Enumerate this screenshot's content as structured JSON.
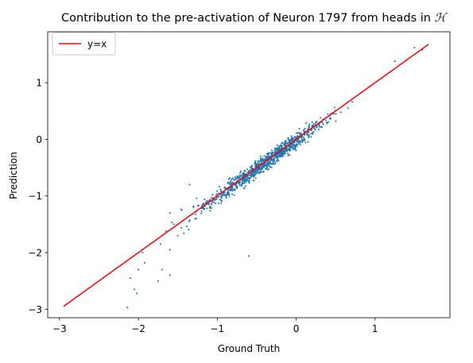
{
  "chart_data": {
    "type": "scatter",
    "title": "Contribution to the pre-activation of Neuron 1797 from heads in 𝓗",
    "title_text": "Contribution to the pre-activation of Neuron 1797 from heads in ",
    "title_symbol": "ℋ",
    "xlabel": "Ground Truth",
    "ylabel": "Prediction",
    "xlim": [
      -3.15,
      1.95
    ],
    "ylim": [
      -3.15,
      1.9
    ],
    "xticks": [
      -3,
      -2,
      -1,
      0,
      1
    ],
    "yticks": [
      -3,
      -2,
      -1,
      0,
      1
    ],
    "grid": false,
    "legend": {
      "placement": "top-left",
      "entries": [
        "y=x"
      ]
    },
    "colors": {
      "scatter": "#1f77b4",
      "reference_line": "#ff0000"
    },
    "reference_line": {
      "name": "y=x",
      "x": [
        -2.95,
        1.68
      ],
      "y": [
        -2.95,
        1.68
      ]
    },
    "outliers": [
      {
        "x": -2.14,
        "y": -2.97
      },
      {
        "x": -2.05,
        "y": -2.65
      },
      {
        "x": -2.02,
        "y": -2.72
      },
      {
        "x": -2.1,
        "y": -2.45
      },
      {
        "x": -2.0,
        "y": -2.3
      },
      {
        "x": -1.95,
        "y": -2.0
      },
      {
        "x": -1.92,
        "y": -2.18
      },
      {
        "x": -1.75,
        "y": -2.5
      },
      {
        "x": -1.6,
        "y": -2.4
      },
      {
        "x": -1.7,
        "y": -2.3
      },
      {
        "x": -0.6,
        "y": -2.06
      },
      {
        "x": -1.65,
        "y": -1.62
      },
      {
        "x": -1.72,
        "y": -1.85
      },
      {
        "x": -1.6,
        "y": -1.95
      },
      {
        "x": -1.45,
        "y": -1.25
      },
      {
        "x": -1.35,
        "y": -0.8
      },
      {
        "x": -1.6,
        "y": -1.3
      },
      {
        "x": -1.55,
        "y": -1.5
      },
      {
        "x": -1.5,
        "y": -1.7
      },
      {
        "x": 1.5,
        "y": 1.62
      },
      {
        "x": 1.6,
        "y": 1.58
      },
      {
        "x": 1.25,
        "y": 1.38
      }
    ],
    "bulk": {
      "count": 1000,
      "x_range": [
        -2.1,
        1.6
      ],
      "relation": "y ≈ x with scatter of about ±0.15, widening for x < -1.2"
    }
  }
}
